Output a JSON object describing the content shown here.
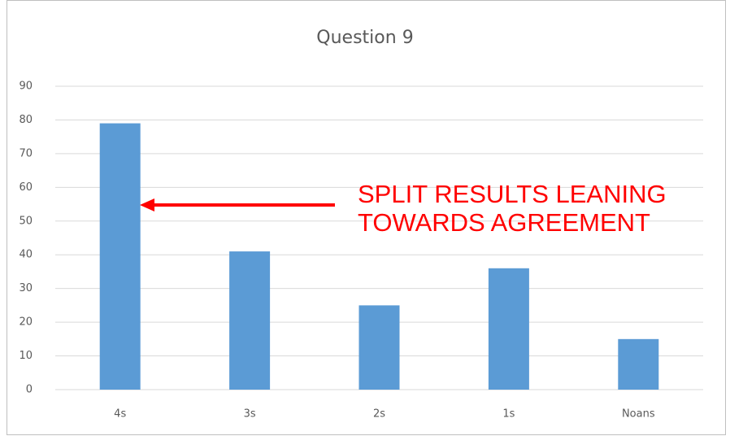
{
  "chart_data": {
    "type": "bar",
    "title": "Question 9",
    "categories": [
      "4s",
      "3s",
      "2s",
      "1s",
      "Noans"
    ],
    "values": [
      79,
      41,
      25,
      36,
      15
    ],
    "color": "#5b9bd5",
    "ylim": [
      0,
      90
    ],
    "yticks": [
      0,
      10,
      20,
      30,
      40,
      50,
      60,
      70,
      80,
      90
    ],
    "grid": true,
    "annotation": [
      "SPLIT RESULTS LEANING",
      "TOWARDS AGREEMENT"
    ],
    "annotation_color": "#ff0000"
  }
}
